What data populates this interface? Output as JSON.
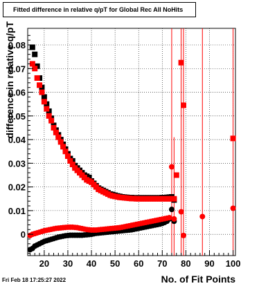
{
  "chart_data": {
    "type": "scatter",
    "title": "Fitted difference in relative q/pT for Global Rec All NoHits",
    "xlabel": "No. of Fit Points",
    "ylabel": "difference in relative q/pT",
    "xlim": [
      13,
      101
    ],
    "ylim": [
      -0.009,
      0.087
    ],
    "x_ticks": [
      20,
      30,
      40,
      50,
      60,
      70,
      80,
      90,
      100
    ],
    "y_ticks": [
      0,
      0.01,
      0.02,
      0.03,
      0.04,
      0.05,
      0.06,
      0.07,
      0.08
    ],
    "y_tick_labels": [
      "0",
      "0.01",
      "0.02",
      "0.03",
      "0.04",
      "0.05",
      "0.06",
      "0.07",
      "0.08"
    ],
    "grid": true,
    "timestamp": "Fri Feb 18 17:25:27 2022",
    "colors": {
      "black": "#000000",
      "red": "#ff0000"
    },
    "series": [
      {
        "color": "#000000",
        "marker": "square",
        "x": [
          15,
          16,
          17,
          18,
          19,
          20,
          21,
          22,
          23,
          24,
          25,
          26,
          27,
          28,
          29,
          30,
          31,
          32,
          33,
          34,
          35,
          36,
          37,
          38,
          39,
          40,
          41,
          42,
          43,
          44,
          45,
          46,
          47,
          48,
          49,
          50,
          51,
          52,
          53,
          54,
          55,
          56,
          57,
          58,
          59,
          60,
          61,
          62,
          63,
          64,
          65,
          66,
          67,
          68,
          69,
          70,
          71,
          72,
          73,
          74,
          75
        ],
        "y": [
          0.079,
          0.076,
          0.071,
          0.066,
          0.062,
          0.058,
          0.055,
          0.052,
          0.049,
          0.046,
          0.044,
          0.042,
          0.04,
          0.038,
          0.036,
          0.034,
          0.032,
          0.031,
          0.029,
          0.028,
          0.027,
          0.026,
          0.025,
          0.0245,
          0.024,
          0.0225,
          0.0215,
          0.0205,
          0.0195,
          0.019,
          0.0185,
          0.018,
          0.0175,
          0.017,
          0.0168,
          0.0165,
          0.0162,
          0.016,
          0.0158,
          0.0157,
          0.0156,
          0.0155,
          0.0155,
          0.0154,
          0.0154,
          0.0154,
          0.0154,
          0.0154,
          0.0154,
          0.0154,
          0.0154,
          0.0154,
          0.0154,
          0.0154,
          0.0154,
          0.0155,
          0.0155,
          0.0156,
          0.0157,
          0.0158,
          0.0145
        ]
      },
      {
        "color": "#000000",
        "marker": "circle",
        "x": [
          14,
          15,
          16,
          17,
          18,
          19,
          20,
          21,
          22,
          23,
          24,
          25,
          26,
          27,
          28,
          29,
          30,
          31,
          32,
          33,
          34,
          35,
          36,
          37,
          38,
          39,
          40,
          41,
          42,
          43,
          44,
          45,
          46,
          47,
          48,
          49,
          50,
          51,
          52,
          53,
          54,
          55,
          56,
          57,
          58,
          59,
          60,
          61,
          62,
          63,
          64,
          65,
          66,
          67,
          68,
          69,
          70,
          71,
          72,
          73,
          74,
          75
        ],
        "y": [
          -0.0065,
          -0.006,
          -0.005,
          -0.0045,
          -0.004,
          -0.0035,
          -0.003,
          -0.0027,
          -0.0024,
          -0.0021,
          -0.0018,
          -0.0015,
          -0.0012,
          -0.001,
          -0.0008,
          -0.0006,
          -0.0005,
          -0.0004,
          -0.0004,
          -0.0004,
          -0.0004,
          -0.0004,
          -0.0004,
          -0.0003,
          -0.0002,
          -0.0001,
          0.0,
          0.0002,
          0.0004,
          0.0005,
          0.0006,
          0.0007,
          0.0008,
          0.0009,
          0.001,
          0.0011,
          0.0012,
          0.0013,
          0.0014,
          0.0015,
          0.0016,
          0.0017,
          0.0018,
          0.0019,
          0.0021,
          0.0023,
          0.0025,
          0.0027,
          0.0029,
          0.0031,
          0.0033,
          0.0035,
          0.0037,
          0.0039,
          0.0041,
          0.0043,
          0.0046,
          0.005,
          0.0055,
          0.0065,
          0.0105,
          0.0055
        ]
      },
      {
        "color": "#ff0000",
        "marker": "square",
        "x": [
          15,
          16,
          17,
          18,
          19,
          20,
          21,
          22,
          23,
          24,
          25,
          26,
          27,
          28,
          29,
          30,
          31,
          32,
          33,
          34,
          35,
          36,
          37,
          38,
          39,
          40,
          41,
          42,
          43,
          44,
          45,
          46,
          47,
          48,
          49,
          50,
          51,
          52,
          53,
          54,
          55,
          56,
          57,
          58,
          59,
          60,
          61,
          62,
          63,
          64,
          65,
          66,
          67,
          68,
          69,
          70,
          71,
          72,
          73,
          74,
          75,
          76,
          78,
          79,
          100
        ],
        "y": [
          0.072,
          0.07,
          0.066,
          0.063,
          0.06,
          0.056,
          0.053,
          0.05,
          0.048,
          0.045,
          0.043,
          0.041,
          0.039,
          0.037,
          0.035,
          0.033,
          0.031,
          0.0295,
          0.028,
          0.027,
          0.026,
          0.025,
          0.024,
          0.023,
          0.0225,
          0.022,
          0.021,
          0.02,
          0.019,
          0.0185,
          0.018,
          0.0175,
          0.017,
          0.0165,
          0.0162,
          0.016,
          0.0158,
          0.0156,
          0.0155,
          0.0154,
          0.0153,
          0.0152,
          0.0151,
          0.0151,
          0.015,
          0.015,
          0.015,
          0.015,
          0.015,
          0.015,
          0.015,
          0.015,
          0.015,
          0.015,
          0.015,
          0.015,
          0.015,
          0.015,
          0.015,
          0.015,
          0.015,
          0.025,
          0.0725,
          0.0545,
          0.0405
        ]
      },
      {
        "color": "#ff0000",
        "marker": "circle",
        "x": [
          14,
          15,
          16,
          17,
          18,
          19,
          20,
          21,
          22,
          23,
          24,
          25,
          26,
          27,
          28,
          29,
          30,
          31,
          32,
          33,
          34,
          35,
          36,
          37,
          38,
          39,
          40,
          41,
          42,
          43,
          44,
          45,
          46,
          47,
          48,
          49,
          50,
          51,
          52,
          53,
          54,
          55,
          56,
          57,
          58,
          59,
          60,
          61,
          62,
          63,
          64,
          65,
          66,
          67,
          68,
          69,
          70,
          71,
          72,
          73,
          74,
          75,
          78,
          79,
          87,
          100
        ],
        "y": [
          -0.0005,
          0.0,
          0.0003,
          0.0006,
          0.0009,
          0.0012,
          0.0015,
          0.0017,
          0.0019,
          0.0021,
          0.0023,
          0.0025,
          0.0026,
          0.0027,
          0.0028,
          0.0029,
          0.003,
          0.003,
          0.003,
          0.0029,
          0.0028,
          0.0026,
          0.0024,
          0.0022,
          0.002,
          0.0019,
          0.0018,
          0.0018,
          0.0018,
          0.0019,
          0.002,
          0.0021,
          0.0022,
          0.0023,
          0.0024,
          0.0025,
          0.0026,
          0.0027,
          0.0028,
          0.003,
          0.0032,
          0.0034,
          0.0036,
          0.0038,
          0.004,
          0.0042,
          0.0044,
          0.0046,
          0.0048,
          0.005,
          0.0052,
          0.0054,
          0.0056,
          0.0058,
          0.006,
          0.0062,
          0.0064,
          0.0066,
          0.0068,
          0.007,
          0.0285,
          0.0065,
          0.0095,
          -0.0005,
          0.0075,
          0.011
        ]
      }
    ],
    "error_bars": [
      {
        "x": 74,
        "low": -0.009,
        "high": 0.087,
        "color": "#ff0000"
      },
      {
        "x": 75,
        "low": -0.009,
        "high": 0.041,
        "color": "#ff0000"
      },
      {
        "x": 78,
        "low": -0.009,
        "high": 0.087,
        "color": "#ff0000"
      },
      {
        "x": 79,
        "low": -0.009,
        "high": 0.087,
        "color": "#ff0000"
      },
      {
        "x": 87,
        "low": -0.009,
        "high": 0.087,
        "color": "#ff0000"
      },
      {
        "x": 100,
        "low": -0.009,
        "high": 0.087,
        "color": "#ff0000"
      }
    ]
  }
}
